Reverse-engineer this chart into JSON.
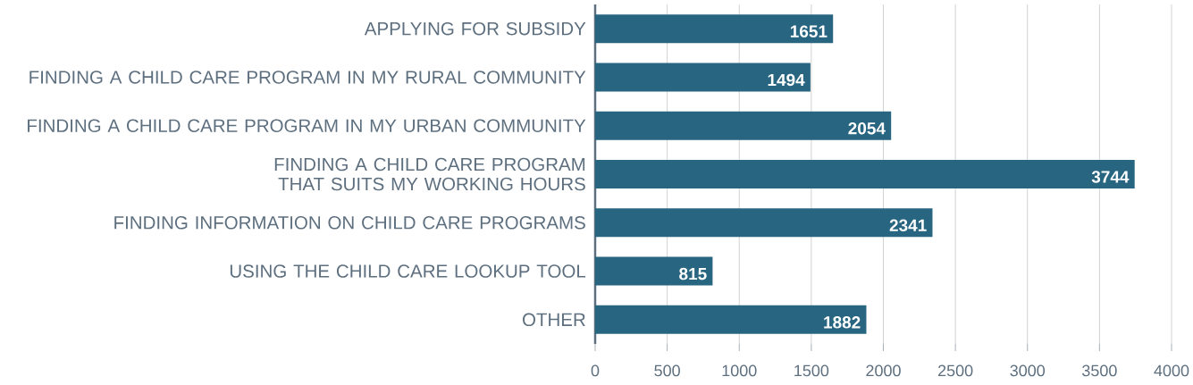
{
  "chart_data": {
    "type": "bar",
    "orientation": "horizontal",
    "categories": [
      "APPLYING FOR SUBSIDY",
      "FINDING A CHILD CARE PROGRAM IN MY RURAL COMMUNITY",
      "FINDING A CHILD CARE PROGRAM IN MY URBAN COMMUNITY",
      "FINDING A CHILD CARE PROGRAM THAT SUITS MY WORKING HOURS",
      "FINDING INFORMATION ON CHILD CARE PROGRAMS",
      "USING THE CHILD CARE LOOKUP TOOL",
      "OTHER"
    ],
    "values": [
      1651,
      1494,
      2054,
      3744,
      2341,
      815,
      1882
    ],
    "color": "#276580",
    "xlim": [
      0,
      4000
    ],
    "xticks": [
      0,
      500,
      1000,
      1500,
      2000,
      2500,
      3000,
      3500,
      4000
    ],
    "grid": "x",
    "data_labels": true
  }
}
